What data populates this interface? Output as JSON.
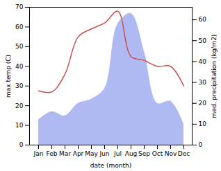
{
  "chart_data": {
    "type": "line",
    "categories": [
      "Jan",
      "Feb",
      "Mar",
      "Apr",
      "May",
      "Jun",
      "Jul",
      "Aug",
      "Sep",
      "Oct",
      "Nov",
      "Dec"
    ],
    "xlabel": "date (month)",
    "ylabel": "max temp (C)",
    "y2label": "med. precipitation (kg/m2)",
    "ylim": [
      0,
      70
    ],
    "yticks": [
      0,
      10,
      20,
      30,
      40,
      50,
      60,
      70
    ],
    "y2lim": [
      0,
      66
    ],
    "y2ticks": [
      0,
      10,
      20,
      30,
      40,
      50,
      60
    ],
    "series": [
      {
        "type": "area",
        "axis": "y2",
        "color": "#b0baf2",
        "values": [
          12,
          16,
          14,
          20,
          22,
          27,
          58,
          63,
          45,
          20,
          21,
          10
        ]
      },
      {
        "type": "line",
        "color": "#c8504f",
        "values": [
          27.5,
          27,
          36,
          55,
          59,
          62,
          68,
          45,
          43,
          40,
          40,
          30
        ]
      }
    ]
  }
}
